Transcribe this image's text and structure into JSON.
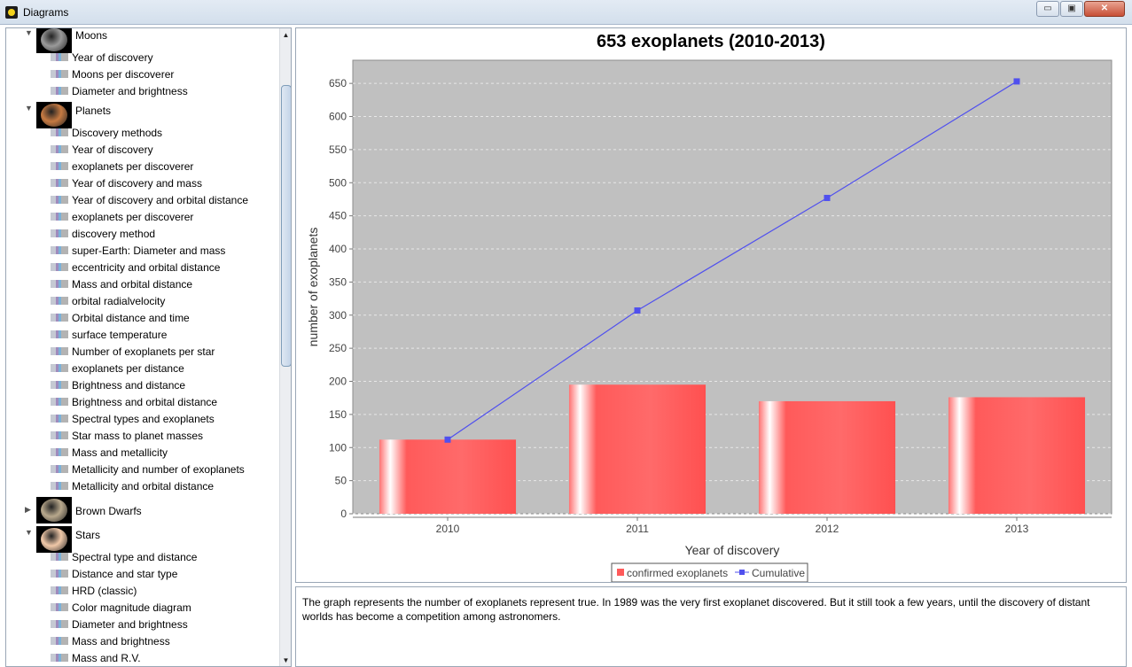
{
  "window": {
    "title": "Diagrams",
    "buttons": {
      "minimize": "▭",
      "maximize": "▣",
      "close": "✕"
    }
  },
  "sidebar": {
    "groups": [
      {
        "label": "Moons",
        "expanded": true,
        "thumb_color": "#9a9a9a",
        "items": [
          "Year of discovery",
          "Moons per discoverer",
          "Diameter and brightness"
        ]
      },
      {
        "label": "Planets",
        "expanded": true,
        "thumb_color": "#c67a42",
        "items": [
          "Discovery methods",
          "Year of discovery",
          "exoplanets per discoverer",
          "Year of discovery and mass",
          "Year of discovery and orbital distance",
          "exoplanets per discoverer",
          "discovery method",
          "super-Earth: Diameter and mass",
          "eccentricity and orbital distance",
          "Mass and orbital distance",
          "orbital radialvelocity",
          "Orbital distance and time",
          "surface temperature",
          "Number of exoplanets per star",
          "exoplanets per distance",
          "Brightness and distance",
          "Brightness and orbital distance",
          "Spectral types and exoplanets",
          "Star mass to planet masses",
          "Mass and metallicity",
          "Metallicity and number of exoplanets",
          "Metallicity and orbital distance"
        ]
      },
      {
        "label": "Brown Dwarfs",
        "expanded": false,
        "thumb_color": "#b8a88c",
        "items": []
      },
      {
        "label": "Stars",
        "expanded": true,
        "thumb_color": "#f0c8a8",
        "items": [
          "Spectral type and distance",
          "Distance and star type",
          "HRD (classic)",
          "Color magnitude diagram",
          "Diameter and brightness",
          "Mass and brightness",
          "Mass and R.V."
        ]
      }
    ],
    "expanded_glyph": "▼",
    "collapsed_glyph": "▶",
    "scroll_up_glyph": "▲",
    "scroll_down_glyph": "▼"
  },
  "chart_data": {
    "type": "bar",
    "title": "653 exoplanets (2010-2013)",
    "xlabel": "Year of discovery",
    "ylabel": "number of exoplanets",
    "categories": [
      "2010",
      "2011",
      "2012",
      "2013"
    ],
    "ylim": [
      0,
      685
    ],
    "yticks": [
      0,
      50,
      100,
      150,
      200,
      250,
      300,
      350,
      400,
      450,
      500,
      550,
      600,
      650
    ],
    "grid": true,
    "legend_position": "bottom",
    "series": [
      {
        "name": "confirmed exoplanets",
        "type": "bar",
        "color": "#ff5a5a",
        "values": [
          112,
          195,
          170,
          176
        ]
      },
      {
        "name": "Cumulative",
        "type": "line",
        "color": "#5050ee",
        "values": [
          112,
          307,
          477,
          653
        ]
      }
    ],
    "plot_background": "#c0c0c0"
  },
  "description": {
    "text": "The graph represents the number of exoplanets represent true. In 1989 was the very first exoplanet discovered. But it still took a few years, until the discovery of distant worlds has become a competition among astronomers."
  }
}
